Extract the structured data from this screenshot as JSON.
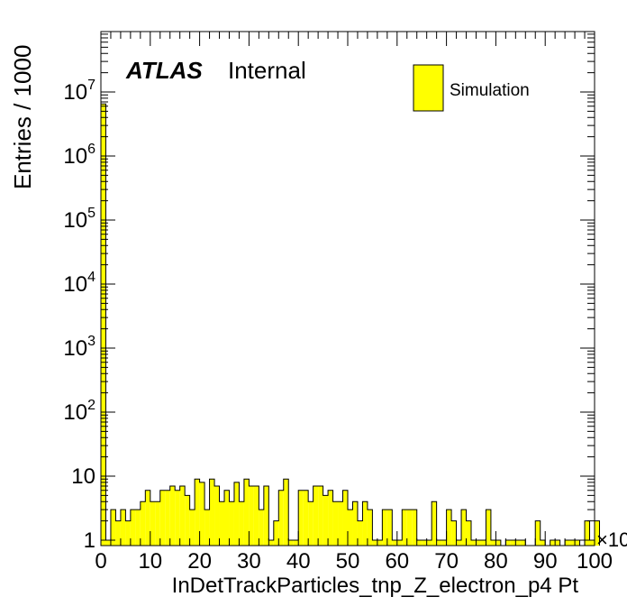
{
  "chart_data": {
    "type": "bar",
    "xlabel": "InDetTrackParticles_tnp_Z_electron_p4 Pt",
    "ylabel": "Entries / 1000",
    "x_multiplier_label": "×10",
    "xlim": [
      0,
      100
    ],
    "ylim": [
      1,
      100000000
    ],
    "yscale": "log",
    "x_ticks": [
      "0",
      "10",
      "20",
      "30",
      "40",
      "50",
      "60",
      "70",
      "80",
      "90",
      "100"
    ],
    "y_ticks": [
      {
        "base": "1",
        "exp": ""
      },
      {
        "base": "10",
        "exp": ""
      },
      {
        "base": "10",
        "exp": "2"
      },
      {
        "base": "10",
        "exp": "3"
      },
      {
        "base": "10",
        "exp": "4"
      },
      {
        "base": "10",
        "exp": "5"
      },
      {
        "base": "10",
        "exp": "6"
      },
      {
        "base": "10",
        "exp": "7"
      }
    ],
    "atlas_label": "ATLAS",
    "atlas_status": "Internal",
    "legend_position": "top-right",
    "legend": [
      {
        "name": "Simulation",
        "color": "#ffff00"
      }
    ],
    "bin_width": 1,
    "bin_edges_start": 0,
    "values": [
      6500000,
      1,
      3,
      2,
      3,
      2,
      3,
      3,
      4,
      6,
      4,
      4,
      6,
      6,
      7,
      6,
      7,
      5,
      3,
      9,
      8,
      3,
      9,
      7,
      4,
      6,
      4,
      8,
      4,
      9,
      7,
      7,
      3,
      7,
      1,
      2,
      6,
      9,
      1,
      1,
      6,
      6,
      4,
      7,
      7,
      5,
      6,
      4,
      4,
      6,
      3,
      4,
      2,
      4,
      3,
      1,
      1,
      3,
      3,
      1,
      1,
      3,
      3,
      3,
      1,
      1,
      1,
      4,
      1,
      1,
      3,
      2,
      1,
      3,
      2,
      1,
      1,
      1,
      3,
      1,
      1,
      0,
      1,
      1,
      1,
      1,
      0,
      0,
      2,
      1,
      0,
      1,
      1,
      0,
      1,
      1,
      1,
      0,
      2,
      1,
      2
    ],
    "colors": {
      "fill": "#ffff00",
      "line": "#000000"
    }
  }
}
